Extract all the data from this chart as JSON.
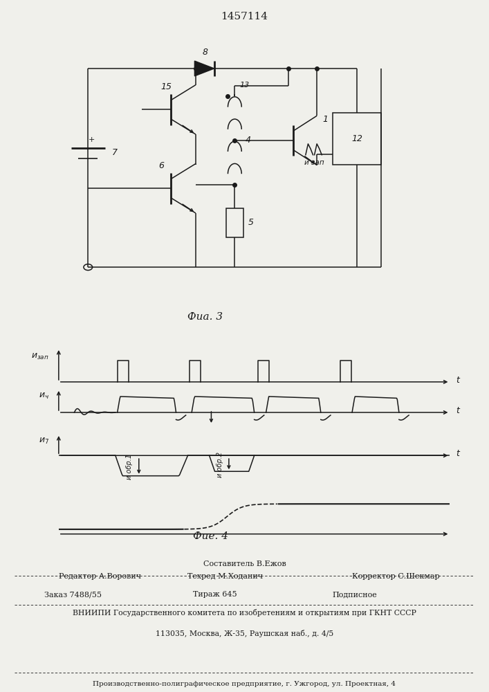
{
  "title": "1457114",
  "fig3_label": "Фиа. 3",
  "fig4_label": "Фие. 4",
  "bg_color": "#f0f0eb",
  "line_color": "#1a1a1a",
  "footer_lines": [
    "Составитель В.Ежов",
    "Редактор А.Ворович",
    "Техред М.Ходанич",
    "Корректор С.Шекмар",
    "Заказ 7488/55",
    "Тираж 645",
    "Подписное",
    "ВНИИПИ Государственного комитета по изобретениям и открытиям при ГКНТ СССР",
    "113035, Москва, Ж-35, Раушская наб., д. 4/5",
    "Производственно-полиграфическое предприятие, г. Ужгород, ул. Проектная, 4"
  ]
}
